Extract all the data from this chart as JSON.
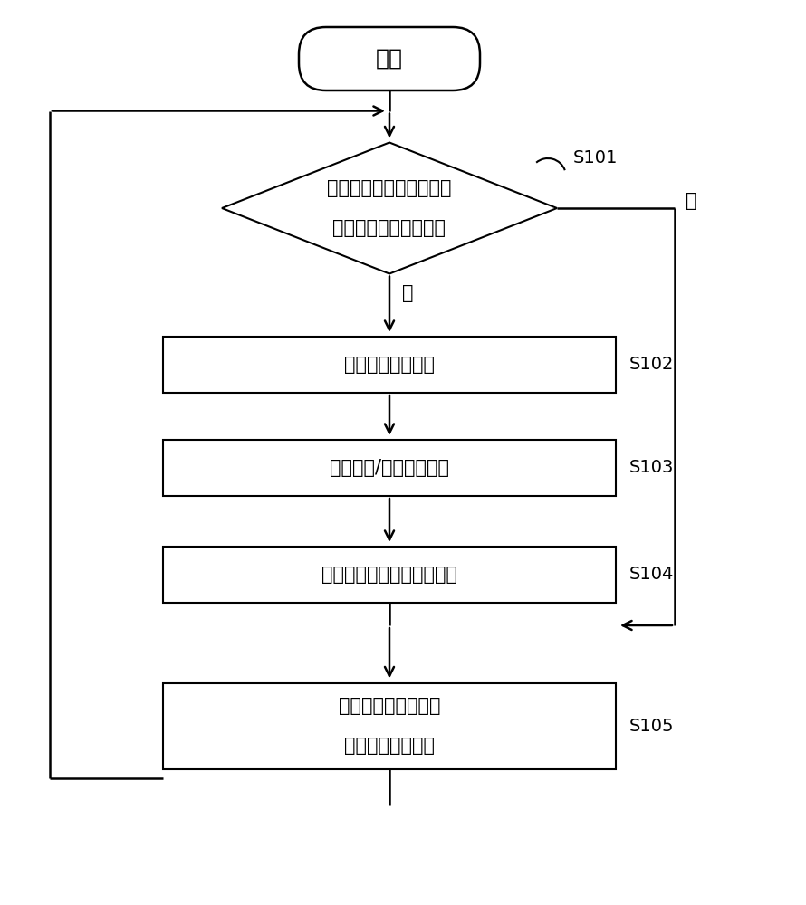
{
  "background_color": "#ffffff",
  "start_label": "开始",
  "diamond_label_line1": "检测触摸笔笔尖是否有压",
  "diamond_label_line2": "力或是否有按键按下？",
  "diamond_step": "S101",
  "diamond_yes": "是",
  "diamond_no": "否",
  "boxes": [
    {
      "label": "发送第一触摸信号",
      "step": "S102"
    },
    {
      "label": "压力値和/或按键値编码",
      "step": "S103"
    },
    {
      "label": "根据编码发送第二触摸信号",
      "step": "S104"
    },
    {
      "label_line1": "进入省电状态，等待",
      "label_line2": "下一次检测时间到",
      "step": "S105"
    }
  ],
  "figsize": [
    8.9,
    10.0
  ],
  "dpi": 100
}
